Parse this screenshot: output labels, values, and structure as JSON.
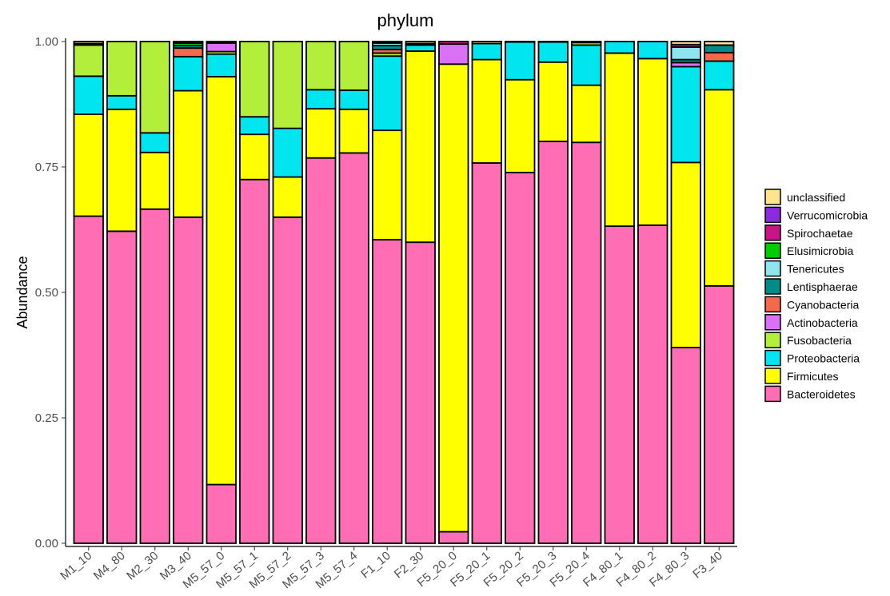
{
  "chart_data": {
    "type": "bar",
    "stacked": true,
    "title": "phylum",
    "xlabel": "",
    "ylabel": "Abundance",
    "ylim": [
      0,
      1
    ],
    "yticks": [
      "0.00",
      "0.25",
      "0.50",
      "0.75",
      "1.00"
    ],
    "ytick_values": [
      0,
      0.25,
      0.5,
      0.75,
      1.0
    ],
    "grid": false,
    "legend_position": "right",
    "categories": [
      "M1_10",
      "M4_80",
      "M2_30",
      "M3_40",
      "M5_57_0",
      "M5_57_1",
      "M5_57_2",
      "M5_57_3",
      "M5_57_4",
      "F1_10",
      "F2_30",
      "F5_20_0",
      "F5_20_1",
      "F5_20_2",
      "F5_20_3",
      "F5_20_4",
      "F4_80_1",
      "F4_80_2",
      "F4_80_3",
      "F3_40"
    ],
    "legend_order": [
      "unclassified",
      "Verrucomicrobia",
      "Spirochaetae",
      "Elusimicrobia",
      "Tenericutes",
      "Lentisphaerae",
      "Cyanobacteria",
      "Actinobacteria",
      "Fusobacteria",
      "Proteobacteria",
      "Firmicutes",
      "Bacteroidetes"
    ],
    "series": [
      {
        "name": "Bacteroidetes",
        "color": "#FF6EB4",
        "values": [
          0.652,
          0.622,
          0.666,
          0.65,
          0.117,
          0.725,
          0.65,
          0.768,
          0.778,
          0.605,
          0.6,
          0.023,
          0.758,
          0.739,
          0.801,
          0.799,
          0.632,
          0.634,
          0.39,
          0.513
        ]
      },
      {
        "name": "Firmicutes",
        "color": "#FFFF00",
        "values": [
          0.203,
          0.243,
          0.113,
          0.252,
          0.813,
          0.09,
          0.08,
          0.098,
          0.087,
          0.218,
          0.381,
          0.932,
          0.206,
          0.185,
          0.158,
          0.114,
          0.345,
          0.332,
          0.369,
          0.391
        ]
      },
      {
        "name": "Proteobacteria",
        "color": "#00E5EE",
        "values": [
          0.076,
          0.027,
          0.039,
          0.068,
          0.045,
          0.035,
          0.097,
          0.038,
          0.038,
          0.148,
          0.012,
          0.0,
          0.032,
          0.075,
          0.04,
          0.08,
          0.023,
          0.034,
          0.191,
          0.057
        ]
      },
      {
        "name": "Fusobacteria",
        "color": "#B3EE3A",
        "values": [
          0.062,
          0.108,
          0.182,
          0.0,
          0.005,
          0.15,
          0.173,
          0.096,
          0.097,
          0.006,
          0.0,
          0.0,
          0.0,
          0.0,
          0.0,
          0.005,
          0.0,
          0.0,
          0.0,
          0.0
        ]
      },
      {
        "name": "Actinobacteria",
        "color": "#DA70F5",
        "values": [
          0.0,
          0.0,
          0.0,
          0.0,
          0.017,
          0.0,
          0.0,
          0.0,
          0.0,
          0.0,
          0.0,
          0.04,
          0.0,
          0.0,
          0.0,
          0.0,
          0.0,
          0.0,
          0.008,
          0.0
        ]
      },
      {
        "name": "Cyanobacteria",
        "color": "#F4684B",
        "values": [
          0.0,
          0.0,
          0.0,
          0.017,
          0.0,
          0.0,
          0.0,
          0.0,
          0.0,
          0.007,
          0.0,
          0.0,
          0.0,
          0.0,
          0.0,
          0.0,
          0.0,
          0.0,
          0.0,
          0.017
        ]
      },
      {
        "name": "Lentisphaerae",
        "color": "#008B8B",
        "values": [
          0.003,
          0.0,
          0.0,
          0.005,
          0.0,
          0.0,
          0.0,
          0.0,
          0.0,
          0.008,
          0.003,
          0.0,
          0.0,
          0.0,
          0.0,
          0.0,
          0.0,
          0.0,
          0.006,
          0.015
        ]
      },
      {
        "name": "Tenericutes",
        "color": "#8EE5EE",
        "values": [
          0.0,
          0.0,
          0.0,
          0.0,
          0.0,
          0.0,
          0.0,
          0.0,
          0.0,
          0.005,
          0.0,
          0.0,
          0.0,
          0.0,
          0.0,
          0.0,
          0.0,
          0.0,
          0.025,
          0.0
        ]
      },
      {
        "name": "Elusimicrobia",
        "color": "#00CD00",
        "values": [
          0.0,
          0.0,
          0.0,
          0.005,
          0.0,
          0.0,
          0.0,
          0.0,
          0.0,
          0.0,
          0.0,
          0.0,
          0.0,
          0.0,
          0.0,
          0.0,
          0.0,
          0.0,
          0.0,
          0.0
        ]
      },
      {
        "name": "Spirochaetae",
        "color": "#C71585",
        "values": [
          0.0,
          0.0,
          0.0,
          0.0,
          0.0,
          0.0,
          0.0,
          0.0,
          0.0,
          0.0,
          0.0,
          0.005,
          0.0,
          0.0,
          0.0,
          0.0,
          0.0,
          0.0,
          0.005,
          0.0
        ]
      },
      {
        "name": "Verrucomicrobia",
        "color": "#8A2BE2",
        "values": [
          0.0,
          0.0,
          0.0,
          0.0,
          0.0,
          0.0,
          0.0,
          0.0,
          0.0,
          0.0,
          0.0,
          0.0,
          0.0,
          0.0,
          0.0,
          0.0,
          0.0,
          0.0,
          0.0,
          0.0
        ]
      },
      {
        "name": "unclassified",
        "color": "#FFE38E",
        "values": [
          0.004,
          0.0,
          0.0,
          0.003,
          0.003,
          0.0,
          0.0,
          0.0,
          0.0,
          0.003,
          0.004,
          0.0,
          0.004,
          0.001,
          0.001,
          0.002,
          0.0,
          0.0,
          0.006,
          0.007
        ]
      }
    ]
  }
}
